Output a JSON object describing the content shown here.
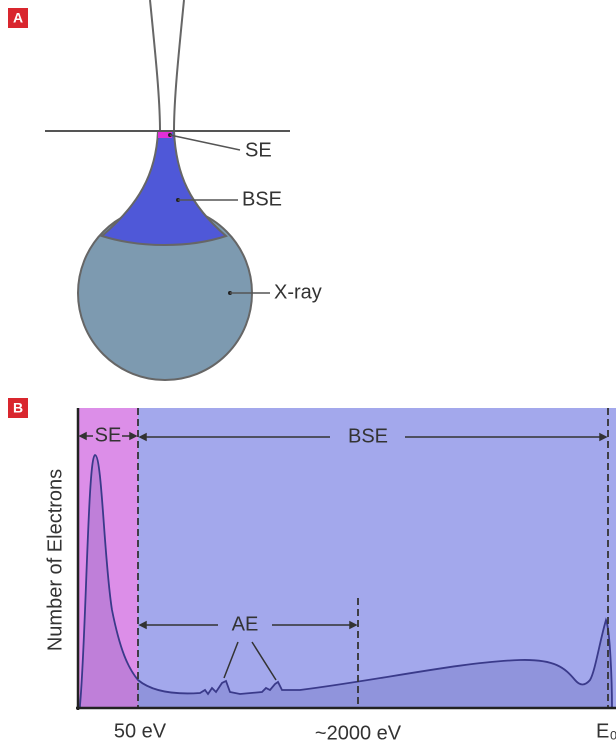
{
  "panel_a": {
    "label": "A",
    "labels": [
      "SE",
      "BSE",
      "X-ray"
    ]
  },
  "panel_b": {
    "label": "B",
    "y_axis_label": "Number of Electrons",
    "regions": [
      "SE",
      "BSE",
      "AE"
    ],
    "x_tick_labels": [
      "50 eV",
      "~2000 eV",
      "E₀"
    ]
  }
}
